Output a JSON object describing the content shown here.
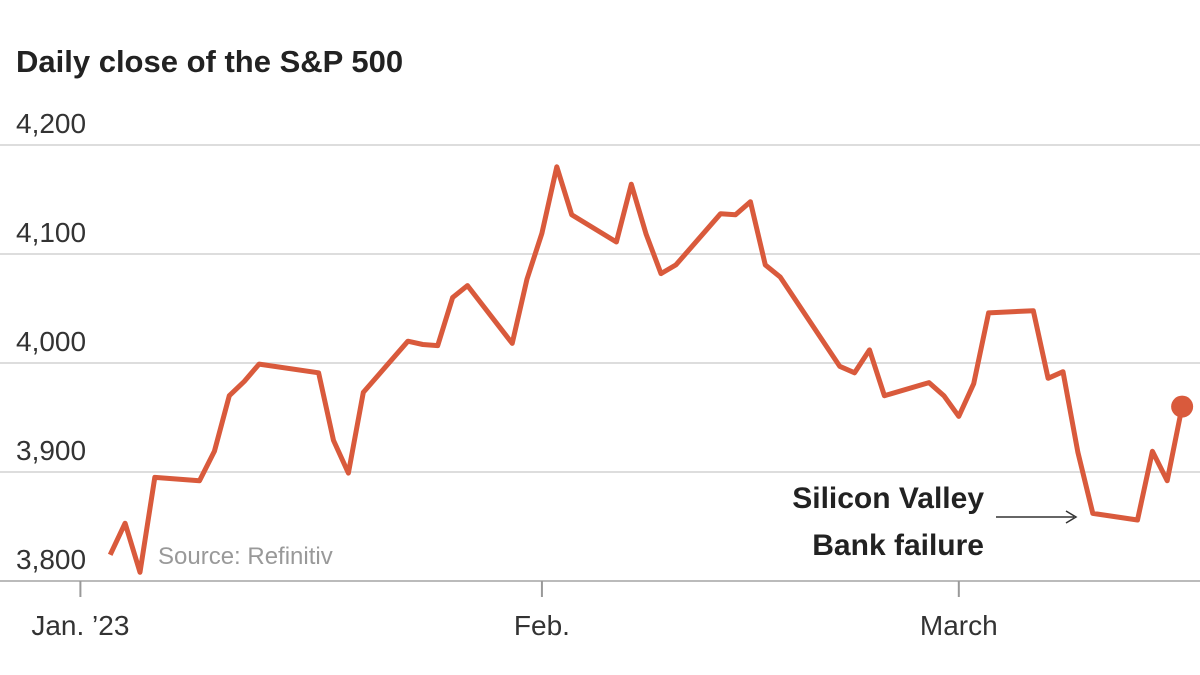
{
  "chart_data": {
    "type": "line",
    "title": "Daily close of the S&P 500",
    "source": "Source: Refinitiv",
    "annotation": [
      "Silicon Valley",
      "Bank failure"
    ],
    "x": [
      2,
      3,
      4,
      5,
      8,
      9,
      10,
      11,
      12,
      16,
      17,
      18,
      19,
      22,
      23,
      24,
      25,
      26,
      29,
      30,
      31,
      32,
      33,
      36,
      37,
      38,
      39,
      40,
      43,
      44,
      45,
      46,
      47,
      51,
      52,
      53,
      54,
      57,
      58,
      59,
      60,
      61,
      64,
      65,
      66,
      67,
      68,
      71,
      72,
      73,
      74
    ],
    "series": [
      {
        "name": "S&P 500",
        "color": "#d95a3c",
        "values": [
          3824,
          3853,
          3808,
          3895,
          3892,
          3919,
          3970,
          3983,
          3999,
          3991,
          3929,
          3899,
          3973,
          4020,
          4017,
          4016,
          4060,
          4071,
          4018,
          4077,
          4119,
          4180,
          4136,
          4111,
          4164,
          4118,
          4082,
          4090,
          4137,
          4136,
          4148,
          4090,
          4079,
          3997,
          3991,
          4012,
          3970,
          3982,
          3970,
          3951,
          3981,
          4046,
          4048,
          3986,
          3992,
          3918,
          3862,
          3856,
          3919,
          3892,
          3960
        ]
      }
    ],
    "xlim": [
      -5.4,
      75.2
    ],
    "xticks": [
      {
        "value": 0,
        "label": "Jan. ’23"
      },
      {
        "value": 31,
        "label": "Feb."
      },
      {
        "value": 59,
        "label": "March"
      }
    ],
    "ylim": [
      3800,
      4200
    ],
    "yticks": [
      {
        "value": 3800,
        "label": "3,800"
      },
      {
        "value": 3900,
        "label": "3,900"
      },
      {
        "value": 4000,
        "label": "4,000"
      },
      {
        "value": 4100,
        "label": "4,100"
      },
      {
        "value": 4200,
        "label": "4,200"
      }
    ],
    "grid": true
  }
}
